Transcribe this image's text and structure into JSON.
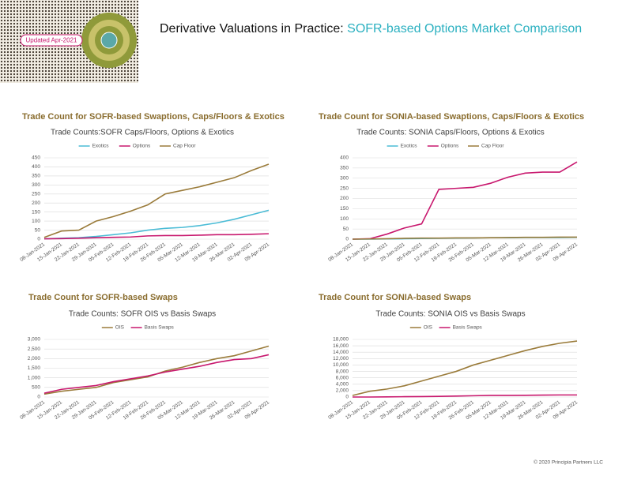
{
  "header": {
    "badge": "Updated Apr-2021",
    "title_lead": "Derivative Valuations in Practice: ",
    "title_accent": "SOFR-based Options Market Comparison"
  },
  "footer": {
    "copyright": "© 2020 Principia Partners LLC"
  },
  "chart_data": [
    {
      "type": "line",
      "heading": "Trade Count for SOFR-based Swaptions, Caps/Floors & Exotics",
      "title": "Trade Counts:SOFR Caps/Floors, Options & Exotics",
      "categories": [
        "08-Jan-2021",
        "15-Jan-2021",
        "22-Jan-2021",
        "29-Jan-2021",
        "05-Feb-2021",
        "12-Feb-2021",
        "19-Feb-2021",
        "26-Feb-2021",
        "05-Mar-2021",
        "12-Mar-2021",
        "19-Mar-2021",
        "26-Mar-2021",
        "02-Apr-2021",
        "09-Apr-2021"
      ],
      "series": [
        {
          "name": "Exotics",
          "color": "#4bbcd6",
          "values": [
            2,
            5,
            8,
            15,
            25,
            35,
            50,
            60,
            65,
            75,
            90,
            110,
            135,
            160
          ]
        },
        {
          "name": "Options",
          "color": "#c8186e",
          "values": [
            2,
            3,
            5,
            8,
            10,
            12,
            18,
            20,
            20,
            22,
            25,
            25,
            27,
            30
          ]
        },
        {
          "name": "Cap Floor",
          "color": "#9a7b3a",
          "values": [
            10,
            45,
            50,
            100,
            125,
            155,
            190,
            250,
            270,
            290,
            315,
            340,
            380,
            415
          ]
        }
      ],
      "ylim": [
        0,
        450
      ],
      "yticks": [
        0,
        50,
        100,
        150,
        200,
        250,
        300,
        350,
        400,
        450
      ],
      "grid": true,
      "legend": "top"
    },
    {
      "type": "line",
      "heading": "Trade Count for SONIA-based Swaptions, Caps/Floors & Exotics",
      "title": "Trade Counts: SONIA Caps/Floors, Options & Exotics",
      "categories": [
        "08-Jan-2021",
        "15-Jan-2021",
        "22-Jan-2021",
        "29-Jan-2021",
        "05-Feb-2021",
        "12-Feb-2021",
        "19-Feb-2021",
        "26-Feb-2021",
        "05-Mar-2021",
        "12-Mar-2021",
        "19-Mar-2021",
        "26-Mar-2021",
        "02-Apr-2021",
        "09-Apr-2021"
      ],
      "series": [
        {
          "name": "Exotics",
          "color": "#4bbcd6",
          "values": [
            0,
            0,
            1,
            2,
            3,
            4,
            5,
            6,
            7,
            7,
            8,
            8,
            8,
            9
          ]
        },
        {
          "name": "Options",
          "color": "#c8186e",
          "values": [
            0,
            2,
            25,
            55,
            75,
            245,
            250,
            255,
            275,
            305,
            325,
            330,
            330,
            380
          ]
        },
        {
          "name": "Cap Floor",
          "color": "#9a7b3a",
          "values": [
            0,
            1,
            2,
            4,
            5,
            5,
            6,
            6,
            7,
            8,
            9,
            9,
            10,
            10
          ]
        }
      ],
      "ylim": [
        0,
        400
      ],
      "yticks": [
        0,
        50,
        100,
        150,
        200,
        250,
        300,
        350,
        400
      ],
      "grid": true,
      "legend": "top"
    },
    {
      "type": "line",
      "heading": "Trade Count for SOFR-based Swaps",
      "title": "Trade Counts: SOFR OIS vs Basis Swaps",
      "categories": [
        "08-Jan-2021",
        "15-Jan-2021",
        "22-Jan-2021",
        "29-Jan-2021",
        "05-Feb-2021",
        "12-Feb-2021",
        "19-Feb-2021",
        "26-Feb-2021",
        "05-Mar-2021",
        "12-Mar-2021",
        "19-Mar-2021",
        "26-Mar-2021",
        "02-Apr-2021",
        "09-Apr-2021"
      ],
      "series": [
        {
          "name": "OIS",
          "color": "#9a7b3a",
          "values": [
            150,
            300,
            400,
            500,
            750,
            900,
            1050,
            1350,
            1550,
            1800,
            2000,
            2150,
            2400,
            2650
          ]
        },
        {
          "name": "Basis Swaps",
          "color": "#c8186e",
          "values": [
            200,
            400,
            500,
            600,
            800,
            950,
            1100,
            1300,
            1450,
            1600,
            1800,
            1950,
            2000,
            2200
          ]
        }
      ],
      "ylim": [
        0,
        3000
      ],
      "yticks": [
        0,
        500,
        {
          "value": 1000,
          "label": "1,000"
        },
        {
          "value": 1500,
          "label": "1,500"
        },
        {
          "value": 2000,
          "label": "2,000"
        },
        {
          "value": 2500,
          "label": "2,500"
        },
        {
          "value": 3000,
          "label": "3,000"
        }
      ],
      "grid": true,
      "legend": "top"
    },
    {
      "type": "line",
      "heading": "Trade Count for SONIA-based Swaps",
      "title": "Trade Counts: SONIA OIS vs Basis Swaps",
      "categories": [
        "08-Jan-2021",
        "15-Jan-2021",
        "22-Jan-2021",
        "29-Jan-2021",
        "05-Feb-2021",
        "12-Feb-2021",
        "19-Feb-2021",
        "26-Feb-2021",
        "05-Mar-2021",
        "12-Mar-2021",
        "19-Mar-2021",
        "26-Mar-2021",
        "02-Apr-2021",
        "09-Apr-2021"
      ],
      "series": [
        {
          "name": "OIS",
          "color": "#9a7b3a",
          "values": [
            500,
            1800,
            2500,
            3500,
            5000,
            6500,
            8000,
            10000,
            11500,
            13000,
            14500,
            15800,
            16800,
            17500
          ]
        },
        {
          "name": "Basis Swaps",
          "color": "#c8186e",
          "values": [
            0,
            0,
            50,
            100,
            150,
            200,
            300,
            400,
            500,
            500,
            550,
            600,
            650,
            650
          ]
        }
      ],
      "ylim": [
        0,
        18000
      ],
      "yticks": [
        0,
        {
          "value": 2000,
          "label": "2,000"
        },
        {
          "value": 4000,
          "label": "4,000"
        },
        {
          "value": 6000,
          "label": "6,000"
        },
        {
          "value": 8000,
          "label": "8,000"
        },
        {
          "value": 10000,
          "label": "10,000"
        },
        {
          "value": 12000,
          "label": "12,000"
        },
        {
          "value": 14000,
          "label": "14,000"
        },
        {
          "value": 16000,
          "label": "16,000"
        },
        {
          "value": 18000,
          "label": "18,000"
        }
      ],
      "grid": true,
      "legend": "top"
    }
  ]
}
